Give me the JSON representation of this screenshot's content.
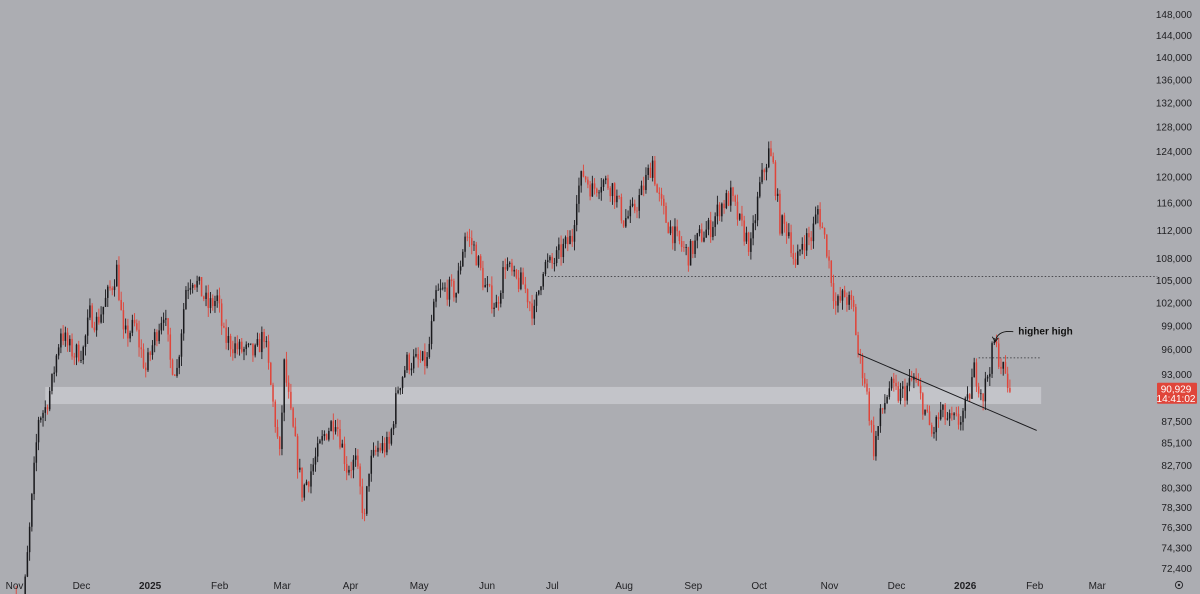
{
  "chart_data": {
    "type": "candlestick",
    "colors": {
      "background": "#acadb2",
      "up": "#1a1a1d",
      "down": "#e0453a",
      "zone": "#c7c8cc",
      "badge": "#e0453a"
    },
    "x_axis": {
      "labels": [
        {
          "text": "Nov",
          "date": "2024-11-01"
        },
        {
          "text": "Dec",
          "date": "2024-12-01"
        },
        {
          "text": "2025",
          "date": "2025-01-01",
          "bold": true
        },
        {
          "text": "Feb",
          "date": "2025-02-01"
        },
        {
          "text": "Mar",
          "date": "2025-03-01"
        },
        {
          "text": "Apr",
          "date": "2025-04-01"
        },
        {
          "text": "May",
          "date": "2025-05-01"
        },
        {
          "text": "Jun",
          "date": "2025-06-01"
        },
        {
          "text": "Jul",
          "date": "2025-07-01"
        },
        {
          "text": "Aug",
          "date": "2025-08-01"
        },
        {
          "text": "Sep",
          "date": "2025-09-01"
        },
        {
          "text": "Oct",
          "date": "2025-10-01"
        },
        {
          "text": "Nov",
          "date": "2025-11-01"
        },
        {
          "text": "Dec",
          "date": "2025-12-01"
        },
        {
          "text": "2026",
          "date": "2026-01-01",
          "bold": true
        },
        {
          "text": "Feb",
          "date": "2026-02-01"
        },
        {
          "text": "Mar",
          "date": "2026-03-01"
        }
      ]
    },
    "y_axis": {
      "scale": "log",
      "range": [
        71500,
        150000
      ],
      "ticks": [
        {
          "value": 148000,
          "text": "148,000"
        },
        {
          "value": 144000,
          "text": "144,000"
        },
        {
          "value": 140000,
          "text": "140,000"
        },
        {
          "value": 136000,
          "text": "136,000"
        },
        {
          "value": 132000,
          "text": "132,000"
        },
        {
          "value": 128000,
          "text": "128,000"
        },
        {
          "value": 124000,
          "text": "124,000"
        },
        {
          "value": 120000,
          "text": "120,000"
        },
        {
          "value": 116000,
          "text": "116,000"
        },
        {
          "value": 112000,
          "text": "112,000"
        },
        {
          "value": 108000,
          "text": "108,000"
        },
        {
          "value": 105000,
          "text": "105,000"
        },
        {
          "value": 102000,
          "text": "102,000"
        },
        {
          "value": 99000,
          "text": "99,000"
        },
        {
          "value": 96000,
          "text": "96,000"
        },
        {
          "value": 93000,
          "text": "93,000"
        },
        {
          "value": 87500,
          "text": "87,500"
        },
        {
          "value": 85100,
          "text": "85,100"
        },
        {
          "value": 82700,
          "text": "82,700"
        },
        {
          "value": 80300,
          "text": "80,300"
        },
        {
          "value": 78300,
          "text": "78,300"
        },
        {
          "value": 76300,
          "text": "76,300"
        },
        {
          "value": 74300,
          "text": "74,300"
        },
        {
          "value": 72400,
          "text": "72,400"
        }
      ]
    },
    "price_path": [
      [
        "2024-11-01",
        70000
      ],
      [
        "2024-11-05",
        68500
      ],
      [
        "2024-11-08",
        76000
      ],
      [
        "2024-11-12",
        88000
      ],
      [
        "2024-11-15",
        89000
      ],
      [
        "2024-11-18",
        92000
      ],
      [
        "2024-11-22",
        98500
      ],
      [
        "2024-11-25",
        96500
      ],
      [
        "2024-11-28",
        95500
      ],
      [
        "2024-12-02",
        96000
      ],
      [
        "2024-12-05",
        100500
      ],
      [
        "2024-12-08",
        99500
      ],
      [
        "2024-12-11",
        101500
      ],
      [
        "2024-12-15",
        104500
      ],
      [
        "2024-12-17",
        106500
      ],
      [
        "2024-12-20",
        97500
      ],
      [
        "2024-12-25",
        99000
      ],
      [
        "2024-12-30",
        93500
      ],
      [
        "2025-01-03",
        97500
      ],
      [
        "2025-01-07",
        101000
      ],
      [
        "2025-01-10",
        94500
      ],
      [
        "2025-01-13",
        93500
      ],
      [
        "2025-01-17",
        104000
      ],
      [
        "2025-01-20",
        105500
      ],
      [
        "2025-01-23",
        104000
      ],
      [
        "2025-01-27",
        101500
      ],
      [
        "2025-01-31",
        102500
      ],
      [
        "2025-02-03",
        97500
      ],
      [
        "2025-02-10",
        96000
      ],
      [
        "2025-02-17",
        95500
      ],
      [
        "2025-02-21",
        98000
      ],
      [
        "2025-02-24",
        91500
      ],
      [
        "2025-02-28",
        83500
      ],
      [
        "2025-03-02",
        94000
      ],
      [
        "2025-03-05",
        88000
      ],
      [
        "2025-03-10",
        80000
      ],
      [
        "2025-03-13",
        81500
      ],
      [
        "2025-03-17",
        84000
      ],
      [
        "2025-03-20",
        86000
      ],
      [
        "2025-03-25",
        88000
      ],
      [
        "2025-03-30",
        82500
      ],
      [
        "2025-04-03",
        83000
      ],
      [
        "2025-04-07",
        77000
      ],
      [
        "2025-04-09",
        82500
      ],
      [
        "2025-04-13",
        84500
      ],
      [
        "2025-04-18",
        84800
      ],
      [
        "2025-04-22",
        91500
      ],
      [
        "2025-04-26",
        94500
      ],
      [
        "2025-04-30",
        94500
      ],
      [
        "2025-05-05",
        94500
      ],
      [
        "2025-05-09",
        103000
      ],
      [
        "2025-05-14",
        103800
      ],
      [
        "2025-05-18",
        103500
      ],
      [
        "2025-05-22",
        111500
      ],
      [
        "2025-05-26",
        109500
      ],
      [
        "2025-05-31",
        104000
      ],
      [
        "2025-06-05",
        101500
      ],
      [
        "2025-06-09",
        107500
      ],
      [
        "2025-06-13",
        105000
      ],
      [
        "2025-06-17",
        104500
      ],
      [
        "2025-06-22",
        100500
      ],
      [
        "2025-06-26",
        107000
      ],
      [
        "2025-06-30",
        107200
      ],
      [
        "2025-07-04",
        109000
      ],
      [
        "2025-07-09",
        111000
      ],
      [
        "2025-07-11",
        117500
      ],
      [
        "2025-07-14",
        120500
      ],
      [
        "2025-07-18",
        118000
      ],
      [
        "2025-07-22",
        119500
      ],
      [
        "2025-07-27",
        118500
      ],
      [
        "2025-08-01",
        113500
      ],
      [
        "2025-08-05",
        114500
      ],
      [
        "2025-08-09",
        117500
      ],
      [
        "2025-08-14",
        122500
      ],
      [
        "2025-08-16",
        117500
      ],
      [
        "2025-08-20",
        113500
      ],
      [
        "2025-08-25",
        110500
      ],
      [
        "2025-08-30",
        108500
      ],
      [
        "2025-09-04",
        111000
      ],
      [
        "2025-09-09",
        112500
      ],
      [
        "2025-09-13",
        115500
      ],
      [
        "2025-09-18",
        117000
      ],
      [
        "2025-09-22",
        113000
      ],
      [
        "2025-09-27",
        109500
      ],
      [
        "2025-10-01",
        118500
      ],
      [
        "2025-10-05",
        123800
      ],
      [
        "2025-10-07",
        121500
      ],
      [
        "2025-10-10",
        113000
      ],
      [
        "2025-10-14",
        112000
      ],
      [
        "2025-10-17",
        106500
      ],
      [
        "2025-10-20",
        110500
      ],
      [
        "2025-10-24",
        111000
      ],
      [
        "2025-10-27",
        115000
      ],
      [
        "2025-10-31",
        109500
      ],
      [
        "2025-11-04",
        101500
      ],
      [
        "2025-11-08",
        103000
      ],
      [
        "2025-11-12",
        101000
      ],
      [
        "2025-11-14",
        95500
      ],
      [
        "2025-11-17",
        92500
      ],
      [
        "2025-11-21",
        84500
      ],
      [
        "2025-11-24",
        88000
      ],
      [
        "2025-11-28",
        91500
      ],
      [
        "2025-12-02",
        90500
      ],
      [
        "2025-12-05",
        91000
      ],
      [
        "2025-12-09",
        92500
      ],
      [
        "2025-12-13",
        89500
      ],
      [
        "2025-12-17",
        86000
      ],
      [
        "2025-12-21",
        88500
      ],
      [
        "2025-12-25",
        87500
      ],
      [
        "2025-12-29",
        87500
      ],
      [
        "2026-01-02",
        89500
      ],
      [
        "2026-01-05",
        93500
      ],
      [
        "2026-01-09",
        90500
      ],
      [
        "2026-01-13",
        95500
      ],
      [
        "2026-01-14",
        96800
      ],
      [
        "2026-01-18",
        93500
      ],
      [
        "2026-01-21",
        90929
      ]
    ],
    "support_zone": {
      "from": 89500,
      "to": 91500,
      "start": "2024-11-15",
      "end": "2026-02-04"
    },
    "levels": [
      {
        "value": 105500,
        "start": "2025-06-28",
        "end": "2026-03-28",
        "style": "dotted"
      },
      {
        "value": 95000,
        "start": "2026-01-07",
        "end": "2026-02-04",
        "style": "dotted"
      }
    ],
    "trendline": {
      "start": [
        "2025-11-14",
        95500
      ],
      "end": [
        "2026-02-02",
        86500
      ]
    },
    "annotation": {
      "text": "higher high",
      "at": [
        "2026-01-14",
        97500
      ]
    },
    "last_price": {
      "value": 90929,
      "text": "90,929",
      "countdown": "14:41:02"
    }
  }
}
